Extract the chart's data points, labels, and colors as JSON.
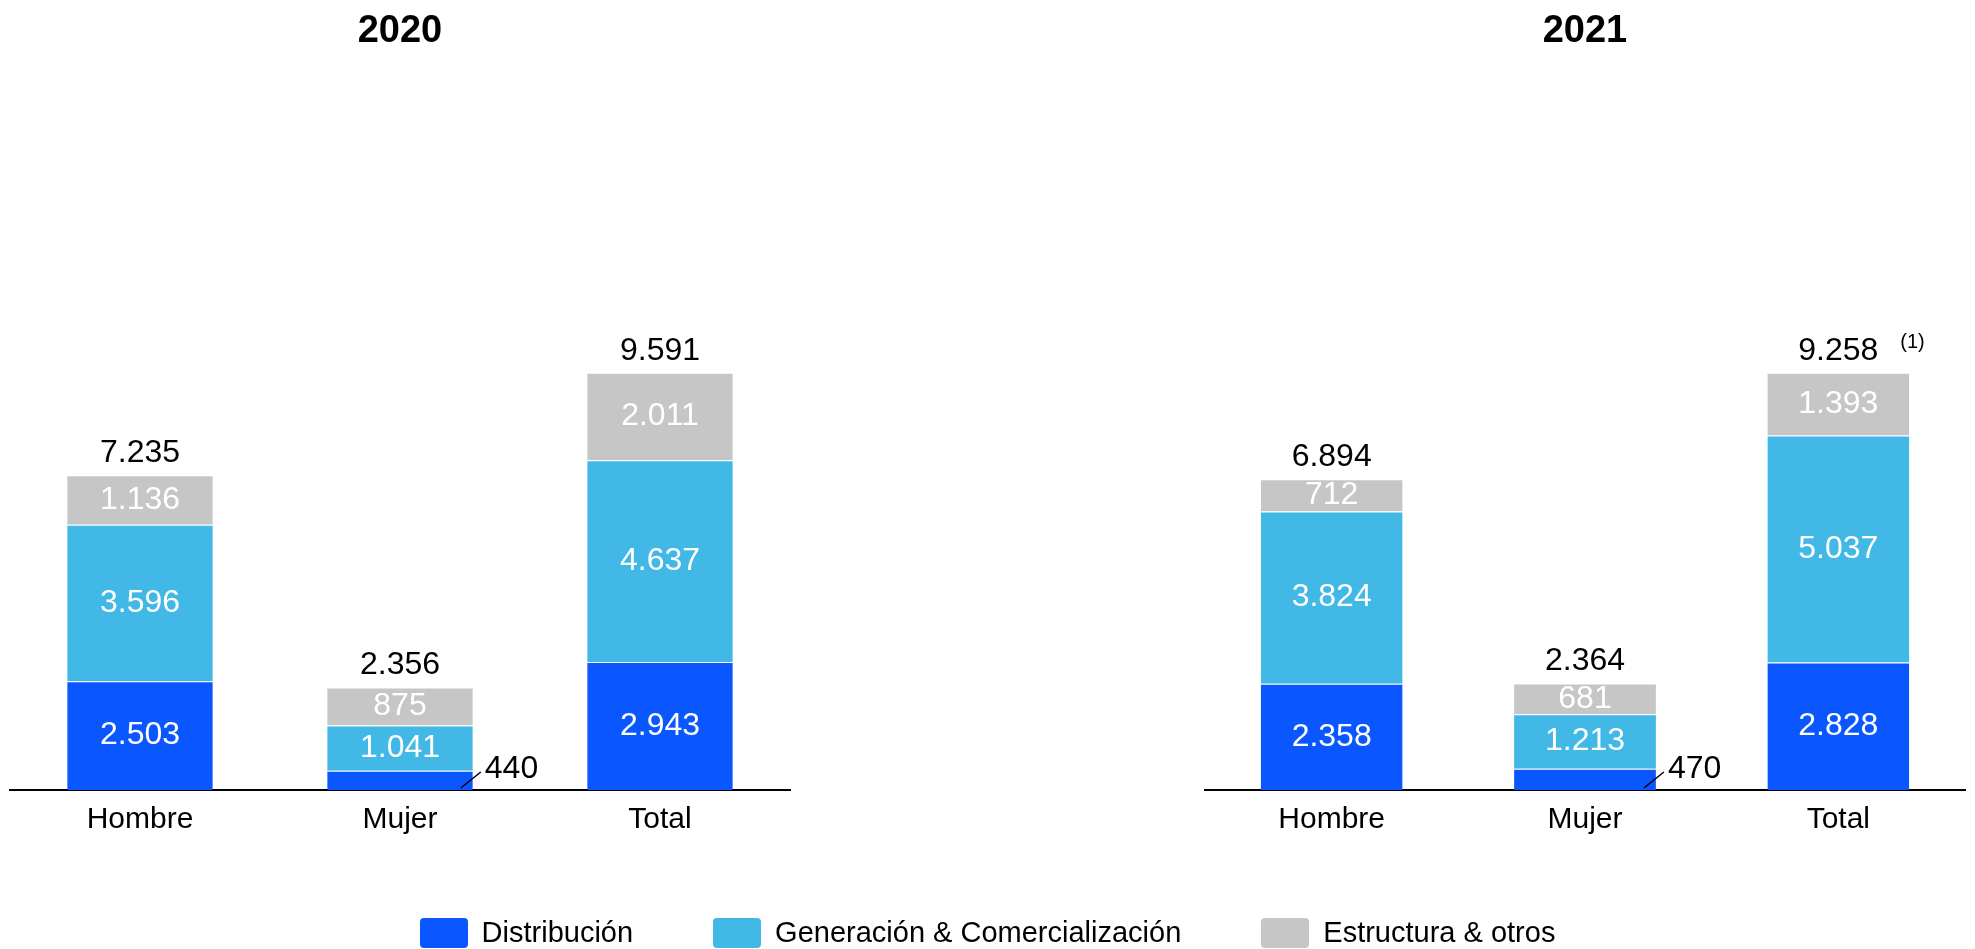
{
  "chart_data": [
    {
      "type": "bar",
      "title": "2020",
      "categories": [
        "Hombre",
        "Mujer",
        "Total"
      ],
      "stacked": true,
      "legend": "bottom",
      "series": [
        {
          "name": "Distribución",
          "color": "#0a57ff",
          "values": [
            2503,
            440,
            2943
          ],
          "value_labels": [
            "2.503",
            "440",
            "2.943"
          ]
        },
        {
          "name": "Generación & Comercialización",
          "color": "#41b8e6",
          "values": [
            3596,
            1041,
            4637
          ],
          "value_labels": [
            "3.596",
            "1.041",
            "4.637"
          ]
        },
        {
          "name": "Estructura & otros",
          "color": "#c6c6c6",
          "values": [
            1136,
            875,
            2011
          ],
          "value_labels": [
            "1.136",
            "875",
            "2.011"
          ]
        }
      ],
      "totals": [
        "7.235",
        "2.356",
        "9.591"
      ]
    },
    {
      "type": "bar",
      "title": "2021",
      "categories": [
        "Hombre",
        "Mujer",
        "Total"
      ],
      "stacked": true,
      "legend": "bottom",
      "series": [
        {
          "name": "Distribución",
          "color": "#0a57ff",
          "values": [
            2358,
            470,
            2828
          ],
          "value_labels": [
            "2.358",
            "470",
            "2.828"
          ]
        },
        {
          "name": "Generación & Comercialización",
          "color": "#41b8e6",
          "values": [
            3824,
            1213,
            5037
          ],
          "value_labels": [
            "3.824",
            "1.213",
            "5.037"
          ]
        },
        {
          "name": "Estructura & otros",
          "color": "#c6c6c6",
          "values": [
            712,
            681,
            1393
          ],
          "value_labels": [
            "712",
            "681",
            "1.393"
          ]
        }
      ],
      "totals": [
        "6.894",
        "2.364",
        "9.258"
      ],
      "annotations": [
        "(1)"
      ]
    }
  ]
}
